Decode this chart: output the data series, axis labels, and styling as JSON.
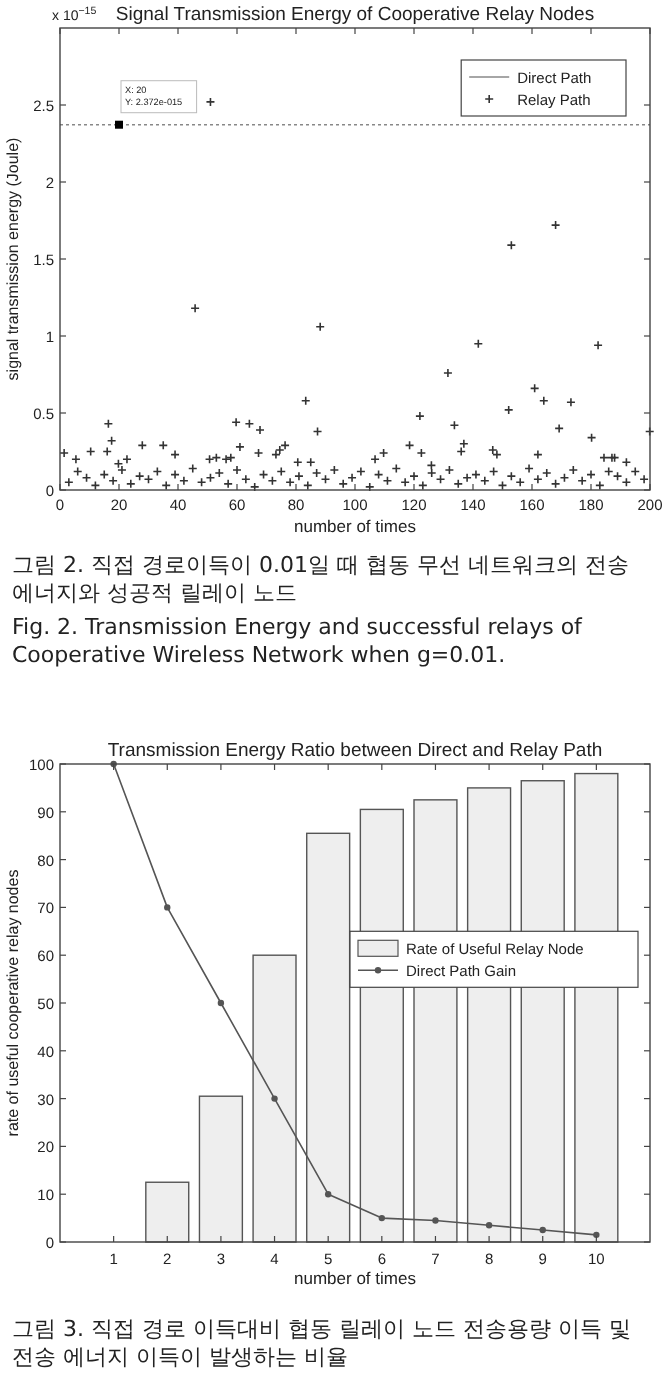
{
  "chart_data": [
    {
      "type": "scatter",
      "title": "Signal Transmission Energy of Cooperative Relay Nodes",
      "xlabel": "number of times",
      "ylabel": "signal transmission energy (Joule)",
      "xlim": [
        0,
        200
      ],
      "xticks": [
        0,
        20,
        40,
        60,
        80,
        100,
        120,
        140,
        160,
        180,
        200
      ],
      "ylim": [
        0,
        3
      ],
      "yticks": [
        0,
        0.5,
        1,
        1.5,
        2,
        2.5
      ],
      "legend": "top right",
      "grid": false,
      "series": [
        {
          "name": "Direct Path",
          "type": "line",
          "color": "#888888",
          "line_style": "dotted",
          "x": [
            0,
            200
          ],
          "values": [
            2.372,
            2.372
          ]
        },
        {
          "name": "Relay Path",
          "color": "#333333",
          "marker": "cross",
          "x": [
            1.4,
            5.4,
            10.4,
            16,
            16.4,
            17.5,
            19.8,
            22.7,
            27.9,
            35,
            39,
            45.8,
            51,
            50.7,
            53,
            56.3,
            57.9,
            59.7,
            61,
            64.2,
            67.8,
            67.3,
            73.2,
            74.5,
            76.3,
            80.6,
            83.3,
            85,
            87.3,
            88.2,
            106.8,
            109.7,
            118.5,
            122,
            122.5,
            125.9,
            131.5,
            133.7,
            136,
            136.9,
            141.8,
            146.7,
            148.1,
            152.1,
            153,
            160.9,
            162,
            164,
            168,
            169.2,
            173.2,
            180.2,
            182.4,
            184.4,
            187.1,
            188,
            192,
            199.9,
            3,
            6,
            9,
            12,
            15,
            18,
            21,
            24,
            27,
            30,
            33,
            36,
            39,
            42,
            45,
            48,
            51,
            54,
            57,
            60,
            63,
            66,
            69,
            72,
            75,
            78,
            81,
            84,
            87,
            90,
            93,
            96,
            99,
            102,
            105,
            108,
            111,
            114,
            117,
            120,
            123,
            126,
            129,
            132,
            135,
            138,
            141,
            144,
            147,
            150,
            153,
            156,
            159,
            162,
            165,
            168,
            171,
            174,
            177,
            180,
            183,
            186,
            189,
            192,
            195,
            198
          ],
          "values": [
            0.24,
            0.2,
            0.25,
            0.25,
            0.43,
            0.32,
            0.17,
            0.2,
            0.29,
            0.29,
            0.23,
            1.18,
            2.52,
            0.2,
            0.21,
            0.2,
            0.21,
            0.44,
            0.28,
            0.43,
            0.39,
            0.24,
            0.23,
            0.26,
            0.29,
            0.18,
            0.58,
            0.18,
            0.38,
            1.06,
            0.2,
            0.24,
            0.29,
            0.48,
            0.24,
            0.16,
            0.76,
            0.42,
            0.25,
            0.3,
            0.95,
            0.26,
            0.23,
            0.52,
            1.59,
            0.66,
            0.23,
            0.58,
            1.72,
            0.4,
            0.57,
            0.34,
            0.94,
            0.21,
            0.21,
            0.21,
            0.18,
            0.38,
            0.05,
            0.12,
            0.08,
            0.03,
            0.1,
            0.06,
            0.13,
            0.04,
            0.09,
            0.07,
            0.12,
            0.03,
            0.1,
            0.06,
            0.14,
            0.05,
            0.08,
            0.11,
            0.04,
            0.13,
            0.07,
            0.02,
            0.1,
            0.06,
            0.12,
            0.05,
            0.09,
            0.03,
            0.11,
            0.07,
            0.13,
            0.04,
            0.08,
            0.12,
            0.02,
            0.1,
            0.06,
            0.14,
            0.05,
            0.09,
            0.03,
            0.11,
            0.07,
            0.13,
            0.04,
            0.08,
            0.1,
            0.06,
            0.12,
            0.03,
            0.09,
            0.05,
            0.14,
            0.07,
            0.11,
            0.04,
            0.08,
            0.13,
            0.06,
            0.1,
            0.03,
            0.12,
            0.09,
            0.05,
            0.12,
            0.07
          ]
        }
      ],
      "annotations": [
        {
          "text": "X: 20\nY: 2.372e-015",
          "x": 20,
          "y": 2.372
        },
        "x 10$^{−15}$",
        "그림 2.  직접 경로이득이 0.01일 때 협동 무선 네트워크의 전송 에너지와 성공적 릴레이 노드",
        "Fig. 2.  Transmission Energy and successful relays of Cooperative Wireless Network when g=0.01."
      ]
    },
    {
      "type": "bar",
      "title": "Transmission Energy Ratio between Direct and Relay Path",
      "xlabel": "number of times",
      "ylabel": "rate of useful cooperative relay nodes",
      "categories": [
        "1",
        "2",
        "3",
        "4",
        "5",
        "6",
        "7",
        "8",
        "9",
        "10"
      ],
      "ylim": [
        0,
        100
      ],
      "yticks": [
        0,
        10,
        20,
        30,
        40,
        50,
        60,
        70,
        80,
        90,
        100
      ],
      "legend": "right",
      "grid": false,
      "series": [
        {
          "name": "Rate of Useful Relay Node",
          "color": "#eeeeee",
          "values": [
            0,
            12.5,
            30.5,
            60,
            85.5,
            90.5,
            92.5,
            95,
            96.5,
            98
          ]
        },
        {
          "name": "Direct Path Gain",
          "type": "line",
          "color": "#555555",
          "marker": "circle",
          "values": [
            100,
            70,
            50,
            30,
            10,
            5,
            4.5,
            3.5,
            2.5,
            1.5
          ]
        }
      ],
      "annotations": [
        "그림 3.  직접 경로 이득대비 협동 릴레이 노드 전송용량 이득 및 전송 에너지 이득이 발생하는 비율"
      ]
    }
  ]
}
